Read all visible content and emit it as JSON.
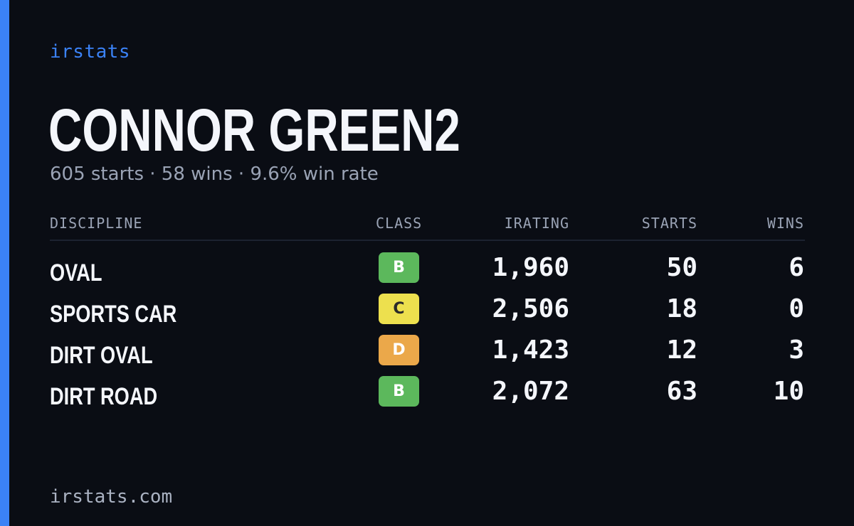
{
  "colors": {
    "background": "#0a0d14",
    "accent": "#3b82f6",
    "class_b": "#5cb85c",
    "class_c": "#ede04e",
    "class_d": "#eba84a",
    "class_text_dark": "#2a2a2a",
    "class_text_light": "#ffffff"
  },
  "brand": {
    "label": "irstats"
  },
  "player": {
    "name": "CONNOR GREEN2",
    "summary": "605 starts · 58 wins · 9.6% win rate"
  },
  "table": {
    "headers": {
      "discipline": "DISCIPLINE",
      "class": "CLASS",
      "irating": "IRATING",
      "starts": "STARTS",
      "wins": "WINS"
    },
    "rows": [
      {
        "discipline": "OVAL",
        "class": "B",
        "irating": "1,960",
        "starts": "50",
        "wins": "6"
      },
      {
        "discipline": "SPORTS CAR",
        "class": "C",
        "irating": "2,506",
        "starts": "18",
        "wins": "0"
      },
      {
        "discipline": "DIRT OVAL",
        "class": "D",
        "irating": "1,423",
        "starts": "12",
        "wins": "3"
      },
      {
        "discipline": "DIRT ROAD",
        "class": "B",
        "irating": "2,072",
        "starts": "63",
        "wins": "10"
      }
    ]
  },
  "footer": {
    "url": "irstats.com"
  }
}
